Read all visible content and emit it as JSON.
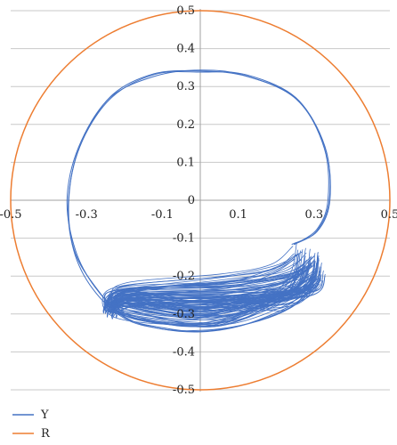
{
  "chart_data": {
    "type": "line",
    "title": "",
    "xlabel": "",
    "ylabel": "",
    "xlim": [
      -0.5,
      0.5
    ],
    "ylim": [
      -0.5,
      0.5
    ],
    "x_ticks": [
      "-0.5",
      "-0.3",
      "-0.1",
      "0.1",
      "0.3",
      "0.5"
    ],
    "x_tick_values": [
      -0.5,
      -0.3,
      -0.1,
      0.1,
      0.3,
      0.5
    ],
    "y_ticks": [
      "0.5",
      "0.4",
      "0.3",
      "0.2",
      "0.1",
      "0",
      "-0.1",
      "-0.2",
      "-0.3",
      "-0.4",
      "-0.5"
    ],
    "y_tick_values": [
      0.5,
      0.4,
      0.3,
      0.2,
      0.1,
      0,
      -0.1,
      -0.2,
      -0.3,
      -0.4,
      -0.5
    ],
    "grid": "horizontal",
    "legend_position": "bottom-left",
    "series": [
      {
        "name": "Y",
        "color": "#4472C4",
        "description_points": [
          [
            0.245,
            -0.12
          ],
          [
            0.31,
            -0.08
          ],
          [
            0.34,
            0.0
          ],
          [
            0.33,
            0.14
          ],
          [
            0.25,
            0.27
          ],
          [
            0.12,
            0.33
          ],
          [
            0.0,
            0.34
          ],
          [
            -0.12,
            0.33
          ],
          [
            -0.24,
            0.27
          ],
          [
            -0.32,
            0.14
          ],
          [
            -0.35,
            0.0
          ],
          [
            -0.33,
            -0.13
          ],
          [
            -0.28,
            -0.23
          ],
          [
            -0.2,
            -0.31
          ],
          [
            -0.1,
            -0.34
          ],
          [
            0.0,
            -0.345
          ],
          [
            0.1,
            -0.33
          ],
          [
            0.2,
            -0.3
          ],
          [
            0.27,
            -0.26
          ],
          [
            0.3,
            -0.22
          ]
        ],
        "band": {
          "x_min": -0.26,
          "x_max": 0.33,
          "y_top": -0.12,
          "y_bottom": -0.35
        }
      },
      {
        "name": "R",
        "color": "#ED7D31",
        "radius": 0.5
      }
    ]
  },
  "legend": [
    {
      "label": "Y",
      "color": "#4472C4"
    },
    {
      "label": "R",
      "color": "#ED7D31"
    }
  ]
}
